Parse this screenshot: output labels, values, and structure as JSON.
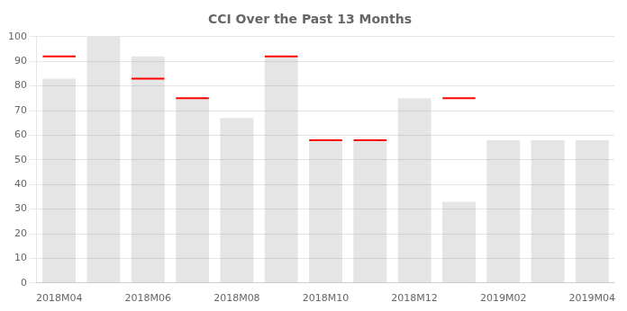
{
  "chart_data": {
    "type": "bar",
    "title": "CCI Over the Past 13 Months",
    "categories": [
      "2018M04",
      null,
      "2018M06",
      null,
      "2018M08",
      null,
      "2018M10",
      null,
      "2018M12",
      null,
      "2019M02",
      null,
      "2019M04"
    ],
    "series": [
      {
        "type": "bar",
        "values": [
          83,
          100,
          92,
          75,
          67,
          92,
          58,
          58,
          75,
          33,
          58,
          58,
          58
        ]
      },
      {
        "type": "line",
        "marker": "line",
        "line_style": "none",
        "color": "red",
        "values": [
          92,
          null,
          83,
          75,
          null,
          92,
          58,
          58,
          null,
          75,
          null,
          null,
          null
        ]
      }
    ],
    "ylim": [
      0,
      100
    ],
    "yticks": [
      0,
      10,
      20,
      30,
      40,
      50,
      60,
      70,
      80,
      90,
      100
    ],
    "grid": true
  }
}
